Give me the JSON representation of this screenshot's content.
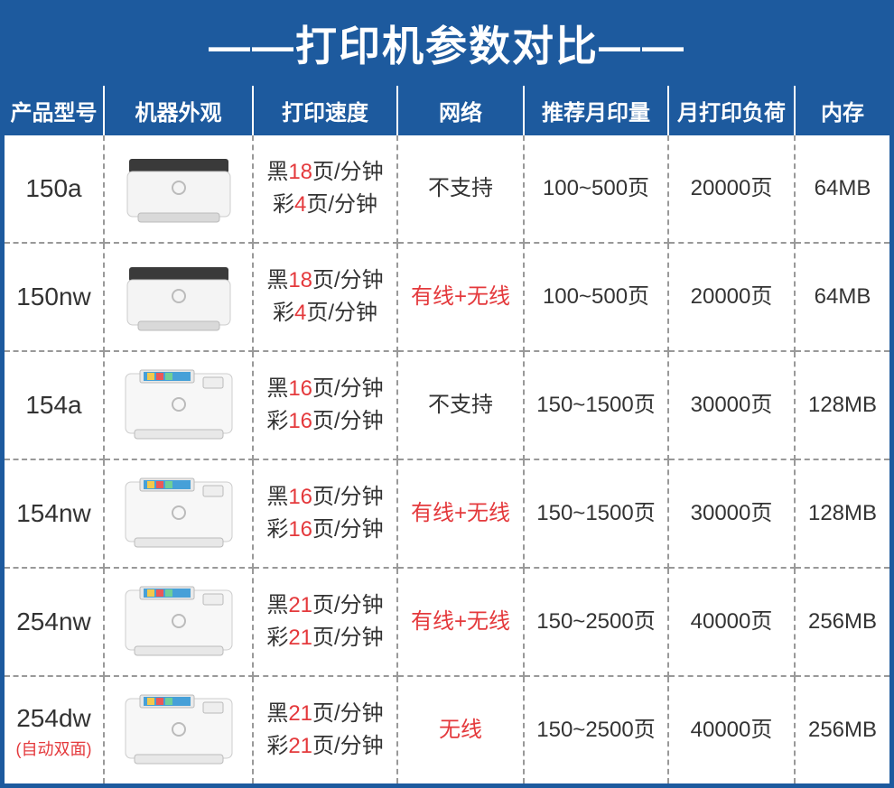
{
  "title": "——打印机参数对比——",
  "colors": {
    "brand": "#1d5a9e",
    "highlight": "#e4393c",
    "text": "#333333",
    "border_dash": "#999999",
    "white": "#ffffff"
  },
  "columns": [
    {
      "key": "model",
      "label": "产品型号",
      "width": 110
    },
    {
      "key": "image",
      "label": "机器外观",
      "width": 165
    },
    {
      "key": "speed",
      "label": "打印速度",
      "width": 160
    },
    {
      "key": "network",
      "label": "网络",
      "width": 140
    },
    {
      "key": "monthly",
      "label": "推荐月印量",
      "width": 160
    },
    {
      "key": "load",
      "label": "月打印负荷",
      "width": 140
    },
    {
      "key": "memory",
      "label": "内存",
      "width": 105
    }
  ],
  "rows": [
    {
      "model": "150a",
      "model_sub": "",
      "printer_style": "compact-dark",
      "speed_black_pre": "黑",
      "speed_black_num": "18",
      "speed_black_post": "页/分钟",
      "speed_color_pre": "彩",
      "speed_color_num": "4",
      "speed_color_post": "页/分钟",
      "network": "不支持",
      "network_red": false,
      "monthly": "100~500页",
      "load": "20000页",
      "memory": "64MB"
    },
    {
      "model": "150nw",
      "model_sub": "",
      "printer_style": "compact-dark",
      "speed_black_pre": "黑",
      "speed_black_num": "18",
      "speed_black_post": "页/分钟",
      "speed_color_pre": "彩",
      "speed_color_num": "4",
      "speed_color_post": "页/分钟",
      "network": "有线+无线",
      "network_red": true,
      "monthly": "100~500页",
      "load": "20000页",
      "memory": "64MB"
    },
    {
      "model": "154a",
      "model_sub": "",
      "printer_style": "white-screen",
      "speed_black_pre": "黑",
      "speed_black_num": "16",
      "speed_black_post": "页/分钟",
      "speed_color_pre": "彩",
      "speed_color_num": "16",
      "speed_color_post": "页/分钟",
      "network": "不支持",
      "network_red": false,
      "monthly": "150~1500页",
      "load": "30000页",
      "memory": "128MB"
    },
    {
      "model": "154nw",
      "model_sub": "",
      "printer_style": "white-screen",
      "speed_black_pre": "黑",
      "speed_black_num": "16",
      "speed_black_post": "页/分钟",
      "speed_color_pre": "彩",
      "speed_color_num": "16",
      "speed_color_post": "页/分钟",
      "network": "有线+无线",
      "network_red": true,
      "monthly": "150~1500页",
      "load": "30000页",
      "memory": "128MB"
    },
    {
      "model": "254nw",
      "model_sub": "",
      "printer_style": "white-screen",
      "speed_black_pre": "黑",
      "speed_black_num": "21",
      "speed_black_post": "页/分钟",
      "speed_color_pre": "彩",
      "speed_color_num": "21",
      "speed_color_post": "页/分钟",
      "network": "有线+无线",
      "network_red": true,
      "monthly": "150~2500页",
      "load": "40000页",
      "memory": "256MB"
    },
    {
      "model": "254dw",
      "model_sub": "(自动双面)",
      "printer_style": "white-screen",
      "speed_black_pre": "黑",
      "speed_black_num": "21",
      "speed_black_post": "页/分钟",
      "speed_color_pre": "彩",
      "speed_color_num": "21",
      "speed_color_post": "页/分钟",
      "network": "无线",
      "network_red": true,
      "monthly": "150~2500页",
      "load": "40000页",
      "memory": "256MB"
    }
  ]
}
